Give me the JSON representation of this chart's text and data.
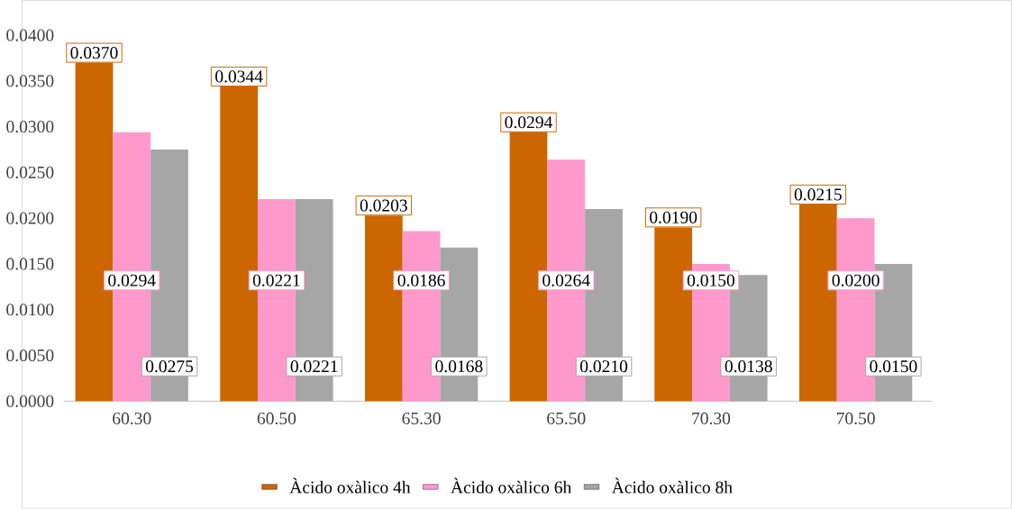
{
  "chart_data": {
    "type": "bar",
    "categories": [
      "60.30",
      "60.50",
      "65.30",
      "65.50",
      "70.30",
      "70.50"
    ],
    "series": [
      {
        "name": "Àcido oxàlico 4h",
        "color": "#cc6600",
        "values": [
          0.037,
          0.0344,
          0.0203,
          0.0294,
          0.019,
          0.0215
        ],
        "value_labels": [
          "0.0370",
          "0.0344",
          "0.0203",
          "0.0294",
          "0.0190",
          "0.0215"
        ]
      },
      {
        "name": "Àcido oxàlico 6h",
        "color": "#ff99cc",
        "values": [
          0.0294,
          0.0221,
          0.0186,
          0.0264,
          0.015,
          0.02
        ],
        "value_labels": [
          "0.0294",
          "0.0221",
          "0.0186",
          "0.0264",
          "0.0150",
          "0.0200"
        ]
      },
      {
        "name": "Àcido oxàlico 8h",
        "color": "#a6a6a6",
        "values": [
          0.0275,
          0.0221,
          0.0168,
          0.021,
          0.0138,
          0.015
        ],
        "value_labels": [
          "0.0275",
          "0.0221",
          "0.0168",
          "0.0210",
          "0.0138",
          "0.0150"
        ]
      }
    ],
    "ylim": [
      0,
      0.04
    ],
    "yticks": [
      {
        "value": 0,
        "label": "0.0000"
      },
      {
        "value": 0.005,
        "label": "0.0050"
      },
      {
        "value": 0.01,
        "label": "0.0100"
      },
      {
        "value": 0.015,
        "label": "0.0150"
      },
      {
        "value": 0.02,
        "label": "0.0200"
      },
      {
        "value": 0.025,
        "label": "0.0250"
      },
      {
        "value": 0.03,
        "label": "0.0300"
      },
      {
        "value": 0.035,
        "label": "0.0350"
      },
      {
        "value": 0.04,
        "label": "0.0400"
      }
    ],
    "grid": false,
    "legend": "bottom"
  }
}
